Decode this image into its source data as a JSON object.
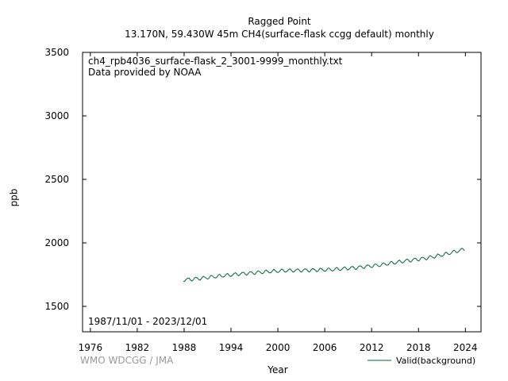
{
  "chart_data": {
    "type": "line",
    "title": "Ragged Point",
    "subtitle": "13.170N, 59.430W 45m    CH4(surface-flask ccgg default) monthly",
    "file_label": "ch4_rpb4036_surface-flask_2_3001-9999_monthly.txt",
    "provider": "Data provided by NOAA",
    "date_range": "1987/11/01 - 2023/12/01",
    "credit": "WMO WDCGG / JMA",
    "xlabel": "Year",
    "ylabel": "ppb",
    "xlim": [
      1975,
      2026
    ],
    "ylim": [
      1300,
      3500
    ],
    "xticks": [
      1976,
      1982,
      1988,
      1994,
      2000,
      2006,
      2012,
      2018,
      2024
    ],
    "yticks": [
      1500,
      2000,
      2500,
      3000,
      3500
    ],
    "grid": false,
    "legend_position": "bottom-right",
    "series": [
      {
        "name": "Valid(background)",
        "color": "#006633",
        "trend": [
          [
            1987.9,
            1708
          ],
          [
            1990,
            1720
          ],
          [
            1992,
            1735
          ],
          [
            1995,
            1755
          ],
          [
            1999,
            1775
          ],
          [
            2001,
            1782
          ],
          [
            2004,
            1785
          ],
          [
            2007,
            1790
          ],
          [
            2010,
            1805
          ],
          [
            2013,
            1825
          ],
          [
            2016,
            1855
          ],
          [
            2019,
            1880
          ],
          [
            2021,
            1905
          ],
          [
            2023.9,
            1950
          ]
        ],
        "seasonal_amplitude": 12,
        "x_start": 1987.9,
        "x_end": 2023.95,
        "points_per_year": 12
      }
    ]
  },
  "colors": {
    "axis": "#000000",
    "credit": "#999999",
    "series": "#006633"
  }
}
